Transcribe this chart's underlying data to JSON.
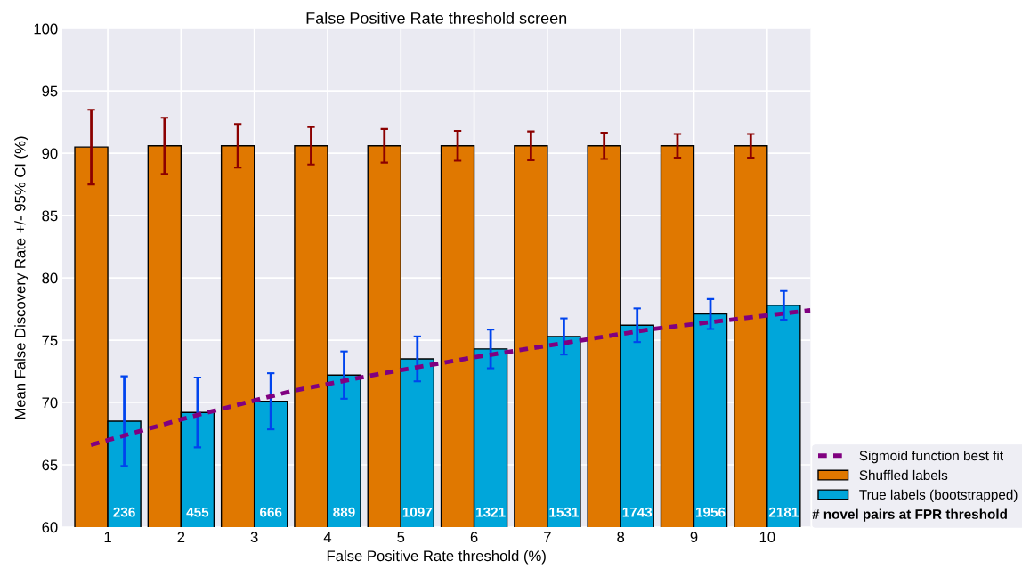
{
  "chart_data": {
    "type": "bar",
    "title": "False Positive Rate threshold screen",
    "xlabel": "False Positive Rate threshold (%)",
    "ylabel": "Mean False Discovery Rate +/- 95% CI (%)",
    "x": [
      1,
      2,
      3,
      4,
      5,
      6,
      7,
      8,
      9,
      10
    ],
    "xlim": [
      0.38,
      10.59
    ],
    "xticks": [
      1,
      2,
      3,
      4,
      5,
      6,
      7,
      8,
      9,
      10
    ],
    "ylim": [
      60,
      100
    ],
    "yticks": [
      60,
      65,
      70,
      75,
      80,
      85,
      90,
      95,
      100
    ],
    "grid": true,
    "legend": "bottom right",
    "line_style": "dashed",
    "series": [
      {
        "name": "Sigmoid function best fit",
        "type": "line",
        "color": "#800080",
        "x": [
          0.77,
          2.16,
          3.5,
          4.71,
          5.97,
          8.44,
          10.59
        ],
        "values": [
          66.6,
          68.9,
          70.9,
          72.3,
          73.6,
          75.9,
          77.4
        ]
      },
      {
        "name": "Shuffled labels",
        "color": "#e07800",
        "values": [
          90.5,
          90.6,
          90.6,
          90.6,
          90.6,
          90.6,
          90.6,
          90.6,
          90.6,
          90.6
        ],
        "errors": [
          3.0,
          2.25,
          1.75,
          1.5,
          1.35,
          1.2,
          1.15,
          1.05,
          0.95,
          0.95
        ]
      },
      {
        "name": "True labels (bootstrapped)",
        "color": "#00a6da",
        "values": [
          68.5,
          69.2,
          70.1,
          72.2,
          73.5,
          74.3,
          75.3,
          76.2,
          77.1,
          77.8
        ],
        "errors": [
          3.6,
          2.8,
          2.25,
          1.9,
          1.8,
          1.55,
          1.45,
          1.35,
          1.2,
          1.15
        ]
      }
    ],
    "annotations": [
      "# novel pairs at FPR threshold",
      {
        "text": "236",
        "x": 1,
        "y": 60
      },
      {
        "text": "455",
        "x": 2,
        "y": 60
      },
      {
        "text": "666",
        "x": 3,
        "y": 60
      },
      {
        "text": "889",
        "x": 4,
        "y": 60
      },
      {
        "text": "1097",
        "x": 5,
        "y": 60
      },
      {
        "text": "1321",
        "x": 6,
        "y": 60
      },
      {
        "text": "1531",
        "x": 7,
        "y": 60
      },
      {
        "text": "1743",
        "x": 8,
        "y": 60
      },
      {
        "text": "1956",
        "x": 9,
        "y": 60
      },
      {
        "text": "2181",
        "x": 10,
        "y": 60
      }
    ]
  }
}
